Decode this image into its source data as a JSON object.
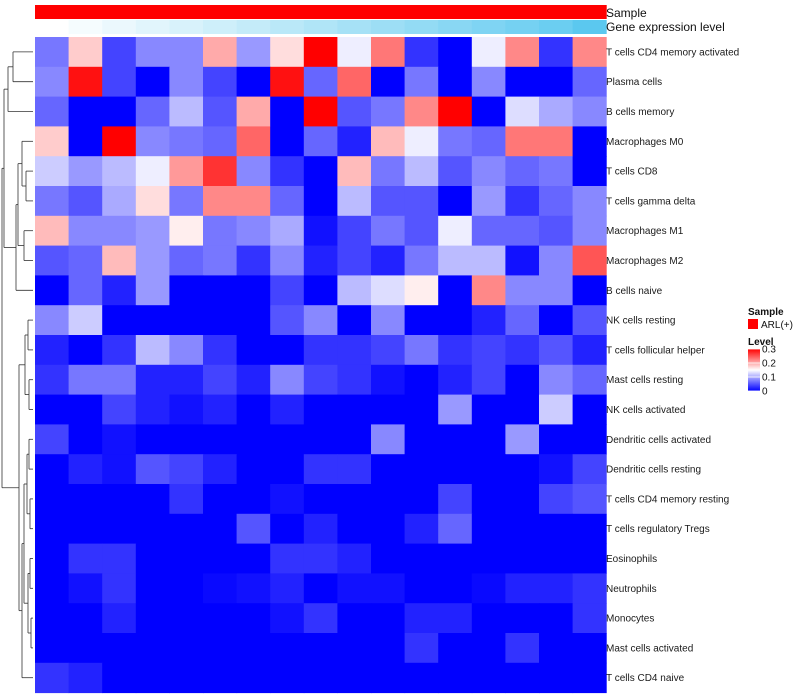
{
  "chart_data": {
    "type": "heatmap",
    "annotation_labels": {
      "sample": "Sample",
      "gene": "Gene expression level"
    },
    "sample_values": [
      "ARL(+)",
      "ARL(+)",
      "ARL(+)",
      "ARL(+)",
      "ARL(+)",
      "ARL(+)",
      "ARL(+)",
      "ARL(+)",
      "ARL(+)",
      "ARL(+)",
      "ARL(+)",
      "ARL(+)",
      "ARL(+)",
      "ARL(+)",
      "ARL(+)",
      "ARL(+)",
      "ARL(+)"
    ],
    "gene_expression_levels": [
      0.0,
      0.06,
      0.12,
      0.18,
      0.24,
      0.3,
      0.36,
      0.42,
      0.48,
      0.54,
      0.6,
      0.66,
      0.72,
      0.78,
      0.84,
      0.9,
      1.0
    ],
    "rows": [
      "T cells CD4 memory activated",
      "Plasma cells",
      "B cells memory",
      "Macrophages M0",
      "T cells CD8",
      "T cells gamma delta",
      "Macrophages M1",
      "Macrophages M2",
      "B cells naive",
      "NK cells resting",
      "T cells follicular helper",
      "Mast cells resting",
      "NK cells activated",
      "Dendritic cells activated",
      "Dendritic cells resting",
      "T cells CD4 memory resting",
      "T cells regulatory  Tregs",
      "Eosinophils",
      "Neutrophils",
      "Monocytes",
      "Mast cells activated",
      "T cells CD4 naive"
    ],
    "values": [
      [
        0.07,
        0.18,
        0.04,
        0.08,
        0.08,
        0.2,
        0.09,
        0.17,
        0.3,
        0.14,
        0.23,
        0.03,
        0.0,
        0.14,
        0.22,
        0.03,
        0.22
      ],
      [
        0.08,
        0.29,
        0.04,
        0.0,
        0.08,
        0.04,
        0.0,
        0.29,
        0.06,
        0.24,
        0.0,
        0.07,
        0.0,
        0.08,
        0.0,
        0.0,
        0.06
      ],
      [
        0.06,
        0.0,
        0.0,
        0.06,
        0.11,
        0.05,
        0.2,
        0.0,
        0.3,
        0.05,
        0.07,
        0.22,
        0.3,
        0.0,
        0.13,
        0.1,
        0.08
      ],
      [
        0.18,
        0.0,
        0.3,
        0.08,
        0.07,
        0.06,
        0.24,
        0.0,
        0.06,
        0.02,
        0.19,
        0.14,
        0.07,
        0.06,
        0.23,
        0.23,
        0.0
      ],
      [
        0.12,
        0.09,
        0.11,
        0.14,
        0.21,
        0.27,
        0.08,
        0.03,
        0.0,
        0.19,
        0.07,
        0.11,
        0.05,
        0.08,
        0.06,
        0.07,
        0.0
      ],
      [
        0.07,
        0.05,
        0.1,
        0.17,
        0.07,
        0.22,
        0.22,
        0.06,
        0.0,
        0.11,
        0.05,
        0.05,
        0.0,
        0.09,
        0.03,
        0.06,
        0.08
      ],
      [
        0.19,
        0.08,
        0.08,
        0.09,
        0.16,
        0.07,
        0.08,
        0.1,
        0.01,
        0.04,
        0.07,
        0.05,
        0.14,
        0.06,
        0.06,
        0.05,
        0.08
      ],
      [
        0.05,
        0.06,
        0.19,
        0.09,
        0.06,
        0.07,
        0.03,
        0.08,
        0.02,
        0.04,
        0.02,
        0.07,
        0.11,
        0.11,
        0.01,
        0.08,
        0.25
      ],
      [
        0.0,
        0.06,
        0.02,
        0.09,
        0.0,
        0.0,
        0.0,
        0.04,
        0.0,
        0.11,
        0.13,
        0.16,
        0.0,
        0.22,
        0.08,
        0.08,
        0.0
      ],
      [
        0.08,
        0.12,
        0.0,
        0.0,
        0.0,
        0.0,
        0.0,
        0.05,
        0.08,
        0.0,
        0.08,
        0.0,
        0.0,
        0.02,
        0.06,
        0.0,
        0.05
      ],
      [
        0.02,
        0.0,
        0.03,
        0.11,
        0.08,
        0.03,
        0.0,
        0.0,
        0.03,
        0.03,
        0.04,
        0.07,
        0.03,
        0.04,
        0.03,
        0.05,
        0.02
      ],
      [
        0.03,
        0.07,
        0.07,
        0.02,
        0.02,
        0.04,
        0.02,
        0.08,
        0.04,
        0.03,
        0.01,
        0.0,
        0.02,
        0.04,
        0.0,
        0.08,
        0.06
      ],
      [
        0.0,
        0.0,
        0.04,
        0.02,
        0.01,
        0.02,
        0.0,
        0.02,
        0.0,
        0.0,
        0.0,
        0.0,
        0.09,
        0.0,
        0.0,
        0.12,
        0.0
      ],
      [
        0.04,
        0.0,
        0.01,
        0.0,
        0.0,
        0.0,
        0.0,
        0.0,
        0.0,
        0.0,
        0.08,
        0.0,
        0.0,
        0.0,
        0.09,
        0.0,
        0.0
      ],
      [
        0.0,
        0.02,
        0.01,
        0.05,
        0.04,
        0.02,
        0.0,
        0.0,
        0.03,
        0.03,
        0.0,
        0.0,
        0.0,
        0.0,
        0.0,
        0.01,
        0.04
      ],
      [
        0.0,
        0.0,
        0.0,
        0.0,
        0.03,
        0.0,
        0.0,
        0.01,
        0.0,
        0.0,
        0.0,
        0.0,
        0.04,
        0.0,
        0.0,
        0.04,
        0.05
      ],
      [
        0.0,
        0.0,
        0.0,
        0.0,
        0.0,
        0.0,
        0.05,
        0.0,
        0.02,
        0.0,
        0.0,
        0.02,
        0.06,
        0.0,
        0.0,
        0.0,
        0.0
      ],
      [
        0.0,
        0.03,
        0.03,
        0.0,
        0.0,
        0.0,
        0.0,
        0.03,
        0.03,
        0.02,
        0.0,
        0.0,
        0.0,
        0.0,
        0.0,
        0.0,
        0.0
      ],
      [
        0.0,
        0.01,
        0.03,
        0.0,
        0.0,
        0.005,
        0.01,
        0.02,
        0.0,
        0.01,
        0.01,
        0.0,
        0.0,
        0.005,
        0.02,
        0.02,
        0.03
      ],
      [
        0.0,
        0.0,
        0.02,
        0.0,
        0.0,
        0.0,
        0.0,
        0.01,
        0.03,
        0.0,
        0.0,
        0.02,
        0.02,
        0.0,
        0.0,
        0.0,
        0.03
      ],
      [
        0.0,
        0.0,
        0.0,
        0.0,
        0.0,
        0.0,
        0.0,
        0.0,
        0.0,
        0.0,
        0.0,
        0.03,
        0.0,
        0.0,
        0.03,
        0.0,
        0.0
      ],
      [
        0.03,
        0.02,
        0.0,
        0.0,
        0.0,
        0.0,
        0.0,
        0.0,
        0.0,
        0.0,
        0.0,
        0.0,
        0.0,
        0.0,
        0.0,
        0.0,
        0.0
      ]
    ],
    "value_range": [
      0,
      0.3
    ],
    "colors": {
      "low": "#0000ff",
      "mid": "#ffffff",
      "high": "#ff0000",
      "sample": "#ff0000",
      "gene_low": "#ffffff",
      "gene_high": "#5bc8ef"
    },
    "legend": {
      "sample_title": "Sample",
      "sample_entry": "ARL(+)",
      "level_title": "Level",
      "ticks": [
        {
          "label": "0.3",
          "value": 0.3
        },
        {
          "label": "0.2",
          "value": 0.2
        },
        {
          "label": "0.1",
          "value": 0.1
        },
        {
          "label": "0",
          "value": 0.0
        }
      ],
      "placement": "right"
    },
    "dendrogram": "rows"
  }
}
